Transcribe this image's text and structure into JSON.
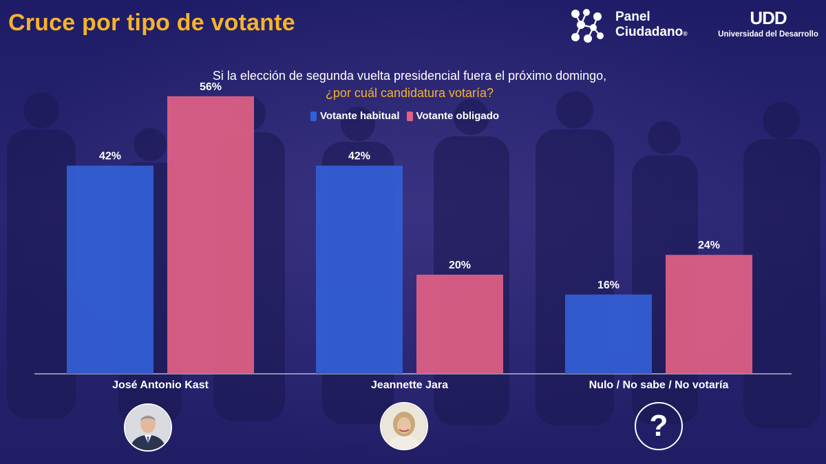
{
  "header": {
    "title": "Cruce por tipo de votante",
    "logo_panel_line1": "Panel",
    "logo_panel_line2": "Ciudadano",
    "logo_panel_reg": "®",
    "logo_udd_mark": "UDD",
    "logo_udd_sub": "Universidad del Desarrollo"
  },
  "colors": {
    "title": "#f6b32b",
    "series_habitual": "#3360d6",
    "series_obligado": "#e26185",
    "background": "#23206a"
  },
  "chart_data": {
    "type": "bar",
    "title": "Si la elección de segunda vuelta presidencial fuera el próximo domingo,",
    "subtitle": "¿por cuál candidatura votaría?",
    "categories": [
      "José Antonio Kast",
      "Jeannette Jara",
      "Nulo / No sabe / No votaría"
    ],
    "series": [
      {
        "name": "Votante habitual",
        "values": [
          42,
          42,
          16
        ],
        "labels": [
          "42%",
          "42%",
          "16%"
        ],
        "color": "#3360d6"
      },
      {
        "name": "Votante obligado",
        "values": [
          56,
          20,
          24
        ],
        "labels": [
          "56%",
          "20%",
          "24%"
        ],
        "color": "#e26185"
      }
    ],
    "ylim": [
      0,
      60
    ],
    "unit": "%",
    "grid": false,
    "legend": "top-center"
  },
  "avatars": [
    {
      "name": "kast-avatar",
      "kind": "photo-man"
    },
    {
      "name": "jara-avatar",
      "kind": "photo-woman"
    },
    {
      "name": "question-avatar",
      "kind": "question",
      "glyph": "?"
    }
  ]
}
